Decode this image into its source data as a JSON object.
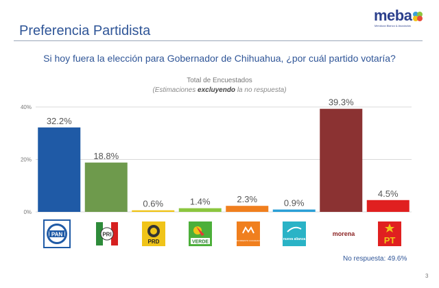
{
  "header": {
    "title": "Preferencia Partidista",
    "logo_text": "meba",
    "logo_subtitle": "Mendoza Blanco & Asociados"
  },
  "question": "Si hoy fuera la elección para Gobernador de Chihuahua, ¿por cuál partido votaría?",
  "subtitle_line1": "Total de Encuestados",
  "subtitle_line2_pre": "(Estimaciones ",
  "subtitle_line2_bold": "excluyendo",
  "subtitle_line2_post": " la no respuesta)",
  "no_response_text": "No respuesta: 49.6%",
  "page_number": "3",
  "party_logos": [
    {
      "name": "PAN",
      "icon": "pan-logo",
      "text": "PAN"
    },
    {
      "name": "PRI",
      "icon": "pri-logo",
      "text": "PRI"
    },
    {
      "name": "PRD",
      "icon": "prd-logo",
      "text": "PRD"
    },
    {
      "name": "VERDE",
      "icon": "verde-logo",
      "text": "VERDE"
    },
    {
      "name": "MC",
      "icon": "movimiento-ciudadano-logo",
      "text": "MOVIMIENTO CIUDADANO"
    },
    {
      "name": "Nueva Alianza",
      "icon": "nueva-alianza-logo",
      "text": "nueva alianza"
    },
    {
      "name": "morena",
      "icon": "morena-logo",
      "text": "morena"
    },
    {
      "name": "PT",
      "icon": "pt-logo",
      "text": "PT"
    }
  ],
  "chart_data": {
    "type": "bar",
    "categories": [
      "PAN",
      "PRI",
      "PRD",
      "VERDE",
      "MC",
      "Nueva Alianza",
      "morena",
      "PT"
    ],
    "values": [
      32.2,
      18.8,
      0.6,
      1.4,
      2.3,
      0.9,
      39.3,
      4.5
    ],
    "value_labels": [
      "32.2%",
      "18.8%",
      "0.6%",
      "1.4%",
      "2.3%",
      "0.9%",
      "39.3%",
      "4.5%"
    ],
    "colors": [
      "#1f5aa6",
      "#6e9a4c",
      "#f0c419",
      "#8cc63f",
      "#f07f1e",
      "#2a9fd6",
      "#8b3232",
      "#e02020"
    ],
    "ylim": [
      0,
      40
    ],
    "yticks": [
      0,
      20,
      40
    ],
    "ytick_labels": [
      "0%",
      "20%",
      "40%"
    ],
    "grid": true,
    "title": "Total de Encuestados"
  }
}
